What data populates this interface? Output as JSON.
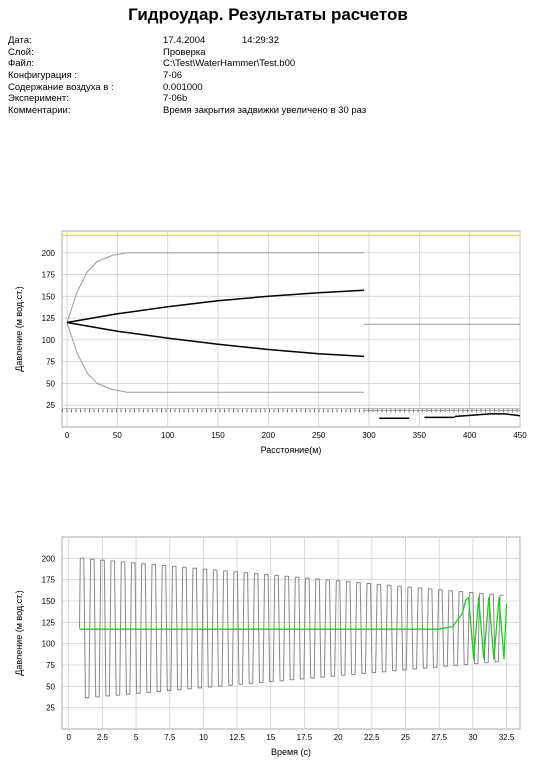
{
  "report": {
    "title": "Гидроудар. Результаты расчетов",
    "rows": [
      {
        "label": "Дата:",
        "value": "17.4.2004",
        "extra": "14:29:32"
      },
      {
        "label": "Слой:",
        "value": "Проверка"
      },
      {
        "label": "Файл:",
        "value": "C:\\Test\\WaterHammer\\Test.b00"
      },
      {
        "label": "Конфигурация :",
        "value": "7-06"
      },
      {
        "label": "Содержание воздуха в :",
        "value": "0.001000"
      },
      {
        "label": "Эксперимент:",
        "value": "7-06b"
      },
      {
        "label": "Комментарии:",
        "value": "Время закрытия задвижки увеличено в 30 раз"
      }
    ]
  },
  "colors": {
    "yellow_line": "#e8e800",
    "envelope_gray": "#9a9a9a",
    "profile_black": "#000000",
    "grid": "#d0d0d0",
    "green_series": "#22cc22",
    "gray_series": "#888888"
  },
  "chart_data": [
    {
      "type": "line",
      "xlabel": "Расстояние(м)",
      "ylabel": "Давление (м вод.ст.)",
      "xlim": [
        -5,
        450
      ],
      "ylim": [
        0,
        225
      ],
      "xticks": [
        0,
        50,
        100,
        150,
        200,
        250,
        300,
        350,
        400,
        450
      ],
      "yticks": [
        25,
        50,
        75,
        100,
        125,
        150,
        175,
        200
      ],
      "grid": true,
      "series": [
        {
          "style": "yellow",
          "x": [
            -5,
            450
          ],
          "y": [
            220,
            220
          ]
        },
        {
          "style": "gray",
          "x": [
            0,
            10,
            20,
            30,
            45,
            60,
            100,
            150,
            200,
            250,
            295
          ],
          "y": [
            120,
            155,
            178,
            190,
            197,
            200,
            200,
            200,
            200,
            200,
            200
          ]
        },
        {
          "style": "gray",
          "x": [
            0,
            10,
            20,
            30,
            45,
            60,
            100,
            150,
            200,
            250,
            295
          ],
          "y": [
            120,
            85,
            62,
            50,
            43,
            40,
            40,
            40,
            40,
            40,
            40
          ]
        },
        {
          "style": "black",
          "x": [
            0,
            50,
            100,
            150,
            200,
            250,
            295
          ],
          "y": [
            120,
            130,
            138,
            145,
            150,
            154,
            157
          ]
        },
        {
          "style": "black",
          "x": [
            0,
            50,
            100,
            150,
            200,
            250,
            295
          ],
          "y": [
            120,
            110,
            102,
            95,
            89,
            84,
            81
          ]
        },
        {
          "style": "gray",
          "x": [
            295,
            450
          ],
          "y": [
            118,
            118
          ]
        },
        {
          "style": "dashed",
          "x": [
            -5,
            450
          ],
          "y": [
            19,
            19
          ]
        },
        {
          "style": "gray",
          "x": [
            295,
            450
          ],
          "y": [
            19,
            19
          ]
        },
        {
          "style": "black",
          "x": [
            310,
            340
          ],
          "y": [
            10,
            10
          ]
        },
        {
          "style": "black",
          "x": [
            355,
            385
          ],
          "y": [
            11,
            11
          ]
        },
        {
          "style": "black",
          "x": [
            385,
            420,
            435,
            450
          ],
          "y": [
            12,
            15,
            15,
            13
          ]
        }
      ]
    },
    {
      "type": "line",
      "xlabel": "Время (c)",
      "ylabel": "Давление (м вод.ст.)",
      "xlim": [
        -0.5,
        33.5
      ],
      "ylim": [
        0,
        225
      ],
      "xticks": [
        0,
        2.5,
        5,
        7.5,
        10,
        12.5,
        15,
        17.5,
        20,
        22.5,
        25,
        27.5,
        30,
        32.5
      ],
      "yticks": [
        25,
        50,
        75,
        100,
        125,
        150,
        175,
        200
      ],
      "grid": true,
      "oscillation": {
        "period": 0.76,
        "start": 0.8,
        "end": 32.5,
        "mean": 118,
        "amplitude_start": 82,
        "amplitude_end": 38
      },
      "series": [
        {
          "name": "",
          "style": "green",
          "x": [
            0.8,
            10,
            20,
            27.5,
            28.5,
            29.2,
            29.5
          ],
          "y": [
            117,
            117,
            117,
            117,
            120,
            135,
            152
          ]
        }
      ],
      "green_oscillation": {
        "start": 29.5,
        "end": 32.5,
        "period": 0.75,
        "mean": 118,
        "amplitude": 36
      }
    }
  ]
}
